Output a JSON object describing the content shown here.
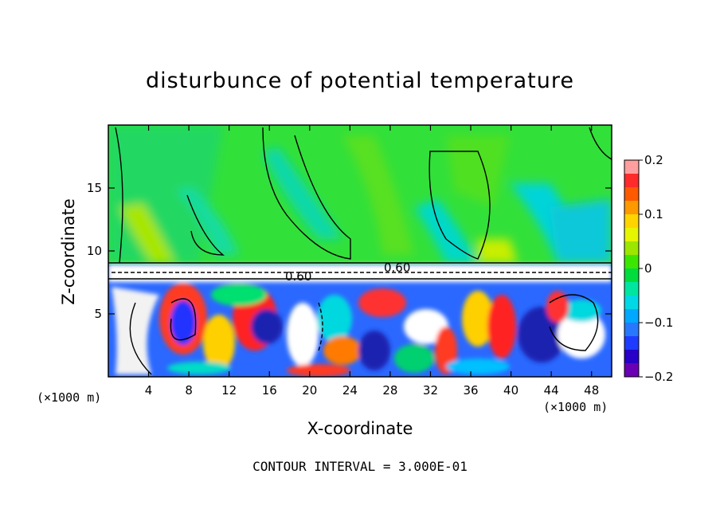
{
  "chart_data": {
    "type": "heatmap",
    "title": "disturbunce of potential temperature",
    "xlabel": "X-coordinate",
    "ylabel": "Z-coordinate",
    "x_unit": "(×1000 m)",
    "x_ticks": [
      4,
      8,
      12,
      16,
      20,
      24,
      28,
      32,
      36,
      40,
      44,
      48
    ],
    "y_ticks": [
      5,
      10,
      15
    ],
    "xlim": [
      0,
      50
    ],
    "ylim": [
      0,
      20
    ],
    "colorbar": {
      "ticks": [
        0.2,
        0.1,
        0,
        -0.1,
        -0.2
      ],
      "tick_labels": [
        "0.2",
        "0.1",
        "0",
        "−0.1",
        "−0.2"
      ],
      "range": [
        -0.2,
        0.2
      ],
      "colors": [
        "#ff9e9e",
        "#ff2b2b",
        "#ff5a00",
        "#ff9900",
        "#ffd400",
        "#e6f500",
        "#9ce600",
        "#3ce600",
        "#00dc3c",
        "#00e6a0",
        "#00d8e6",
        "#00a8ff",
        "#2878ff",
        "#1e3cff",
        "#2800c8",
        "#6a00b4"
      ]
    },
    "contour_labels": [
      "0.60",
      "0.60"
    ],
    "contour_interval": "CONTOUR INTERVAL = 3.000E-01"
  }
}
